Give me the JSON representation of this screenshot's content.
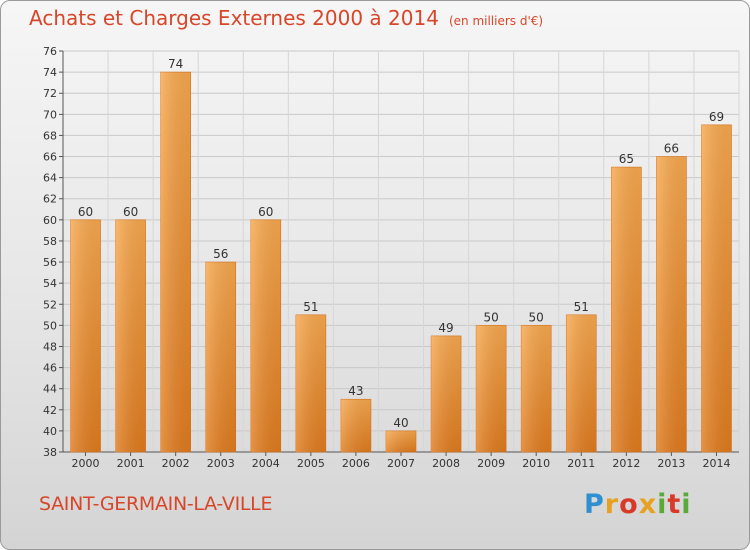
{
  "header": {
    "title": "Achats et Charges Externes 2000 à 2014",
    "unit": "(en milliers d'€)"
  },
  "footer": {
    "city": "SAINT-GERMAIN-LA-VILLE",
    "logo": "Proxiti"
  },
  "colors": {
    "title": "#d8462a",
    "bar_light": "#f7a84e",
    "bar_dark": "#e07b1e"
  },
  "chart_data": {
    "type": "bar",
    "categories": [
      "2000",
      "2001",
      "2002",
      "2003",
      "2004",
      "2005",
      "2006",
      "2007",
      "2008",
      "2009",
      "2010",
      "2011",
      "2012",
      "2013",
      "2014"
    ],
    "values": [
      60,
      60,
      74,
      56,
      60,
      51,
      43,
      40,
      49,
      50,
      50,
      51,
      65,
      66,
      69
    ],
    "ylim": [
      38,
      76
    ],
    "yticks": [
      38,
      40,
      42,
      44,
      46,
      48,
      50,
      52,
      54,
      56,
      58,
      60,
      62,
      64,
      66,
      68,
      70,
      72,
      74,
      76
    ],
    "grid": true
  }
}
